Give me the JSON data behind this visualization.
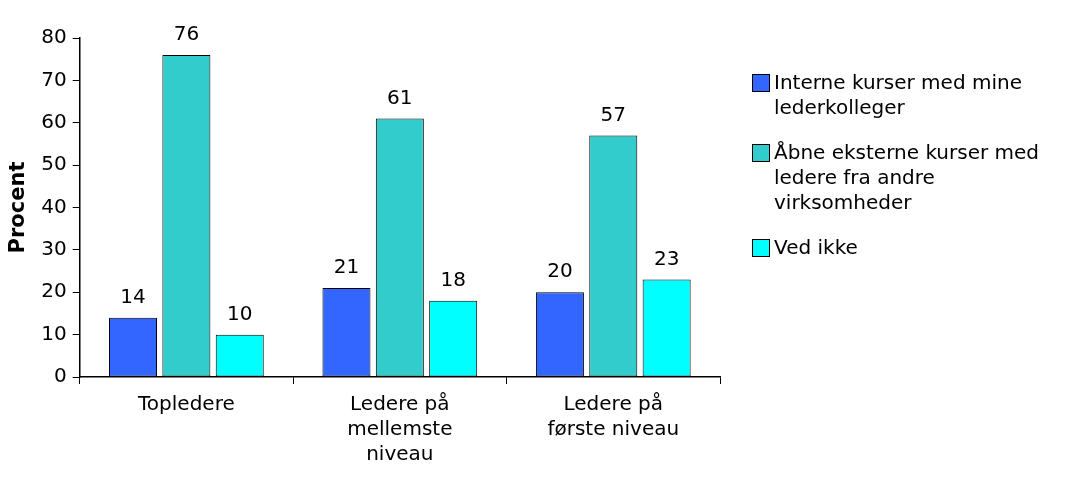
{
  "chart_data": {
    "type": "bar",
    "ylabel": "Procent",
    "categories": [
      "Topledere",
      "Ledere på mellemste niveau",
      "Ledere på første niveau"
    ],
    "series": [
      {
        "name": "Interne kurser med mine lederkolleger",
        "color": "#3366ff",
        "values": [
          14,
          21,
          20
        ]
      },
      {
        "name": "Åbne eksterne kurser med ledere fra andre virksomheder",
        "color": "#33cccc",
        "values": [
          76,
          61,
          57
        ]
      },
      {
        "name": "Ved ikke",
        "color": "#00ffff",
        "values": [
          10,
          18,
          23
        ]
      }
    ],
    "ylim": [
      0,
      80
    ],
    "yticks": [
      0,
      10,
      20,
      30,
      40,
      50,
      60,
      70,
      80
    ],
    "grid": false,
    "legend": "right",
    "data_labels": true
  }
}
